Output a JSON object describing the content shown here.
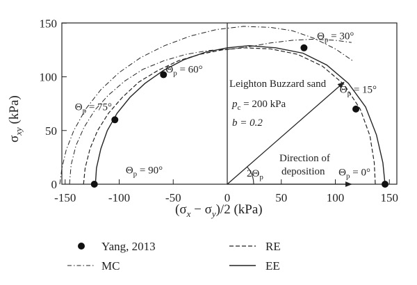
{
  "chart_data": {
    "type": "line",
    "xlabel": {
      "open": "(σ",
      "s1": "x",
      "mid": " − σ",
      "s2": "y",
      "close": ")/2 (kPa)"
    },
    "ylabel": {
      "base": "σ",
      "sub": "xy",
      "unit": " (kPa)"
    },
    "xlim": [
      -160,
      150
    ],
    "ylim": [
      0,
      150
    ],
    "xticks": [
      -150,
      -100,
      -50,
      0,
      50,
      100,
      150
    ],
    "yticks": [
      0,
      50,
      100,
      150
    ],
    "grid": false,
    "legend_position": "bottom",
    "series": [
      {
        "name": "Yang, 2013",
        "style": "markers",
        "points": [
          [
            -123,
            0
          ],
          [
            -104,
            60
          ],
          [
            -59,
            102
          ],
          [
            71,
            127
          ],
          [
            119,
            70
          ],
          [
            146,
            0
          ]
        ]
      },
      {
        "name": "MC",
        "style": "dash-dot",
        "points": [
          [
            -146,
            0
          ],
          [
            -144.5,
            18
          ],
          [
            -140,
            36
          ],
          [
            -132.5,
            53
          ],
          [
            -122.5,
            69
          ],
          [
            -110,
            83
          ],
          [
            -95,
            96
          ],
          [
            -78,
            107
          ],
          [
            -58.5,
            115
          ],
          [
            -38,
            121
          ],
          [
            -17,
            124.5
          ],
          [
            5,
            126
          ],
          [
            20,
            128
          ],
          [
            40,
            131.5
          ],
          [
            60,
            134
          ],
          [
            80,
            135
          ],
          [
            100,
            134
          ],
          [
            115,
            132
          ]
        ]
      },
      {
        "name": "RE",
        "style": "dashed",
        "points": [
          [
            -133,
            0
          ],
          [
            -131.5,
            15
          ],
          [
            -127,
            33
          ],
          [
            -120,
            50
          ],
          [
            -110,
            66
          ],
          [
            -97,
            81
          ],
          [
            -82,
            95
          ],
          [
            -64,
            106
          ],
          [
            -45,
            115
          ],
          [
            -25,
            121
          ],
          [
            -5,
            125
          ],
          [
            15,
            127
          ],
          [
            40,
            126
          ],
          [
            65,
            121
          ],
          [
            88,
            110
          ],
          [
            108,
            93
          ],
          [
            123,
            70
          ],
          [
            132,
            45
          ],
          [
            136,
            20
          ],
          [
            137,
            0
          ]
        ]
      },
      {
        "name": "EE",
        "style": "solid",
        "points": [
          [
            -122,
            0
          ],
          [
            -121,
            15
          ],
          [
            -117,
            33
          ],
          [
            -111,
            50
          ],
          [
            -102,
            66
          ],
          [
            -90,
            81
          ],
          [
            -76,
            94
          ],
          [
            -59,
            106
          ],
          [
            -40,
            116
          ],
          [
            -20,
            123
          ],
          [
            0,
            127
          ],
          [
            20,
            129
          ],
          [
            45,
            127
          ],
          [
            70,
            122
          ],
          [
            92,
            111
          ],
          [
            112,
            94
          ],
          [
            128,
            72
          ],
          [
            138,
            46
          ],
          [
            144,
            20
          ],
          [
            146,
            0
          ]
        ]
      }
    ],
    "mc_upper_curve": [
      [
        -155,
        0
      ],
      [
        -153,
        15
      ],
      [
        -149,
        32
      ],
      [
        -142,
        50
      ],
      [
        -131,
        70
      ],
      [
        -117,
        88
      ],
      [
        -100,
        104
      ],
      [
        -80,
        118
      ],
      [
        -58,
        129
      ],
      [
        -34,
        138
      ],
      [
        -10,
        144
      ],
      [
        15,
        147
      ],
      [
        40,
        146
      ],
      [
        60,
        143
      ],
      [
        80,
        136
      ],
      [
        100,
        126
      ],
      [
        116,
        115
      ]
    ],
    "annotations": {
      "theta90": {
        "base": "Θ",
        "sub": "p",
        "rest": " = 90°",
        "x": -94,
        "y": 10
      },
      "theta75": {
        "base": "Θ",
        "sub": "p",
        "rest": " = 75°",
        "x": -141,
        "y": 69
      },
      "theta60": {
        "base": "Θ",
        "sub": "p",
        "rest": " = 60°",
        "x": -57,
        "y": 104
      },
      "theta30": {
        "base": "Θ",
        "sub": "p",
        "rest": " = 30°",
        "x": 83,
        "y": 135
      },
      "theta15": {
        "base": "Θ",
        "sub": "p",
        "rest": " = 15°",
        "x": 104,
        "y": 85
      },
      "theta0": {
        "base": "Θ",
        "sub": "p",
        "rest": " = 0°",
        "x": 103,
        "y": 8
      },
      "two_theta": {
        "pre": "2Θ",
        "sub": "p",
        "x": 18,
        "y": 7
      },
      "material": "Leighton Buzzard sand",
      "pc": {
        "base": "p",
        "sub": "c",
        "rest": " = 200 kPa"
      },
      "b": "b = 0.2",
      "deposition_line1": "Direction of",
      "deposition_line2": "deposition",
      "deposition_arrow": {
        "x0": 0,
        "y0": 0,
        "x1": 108,
        "y1": 95
      }
    }
  }
}
